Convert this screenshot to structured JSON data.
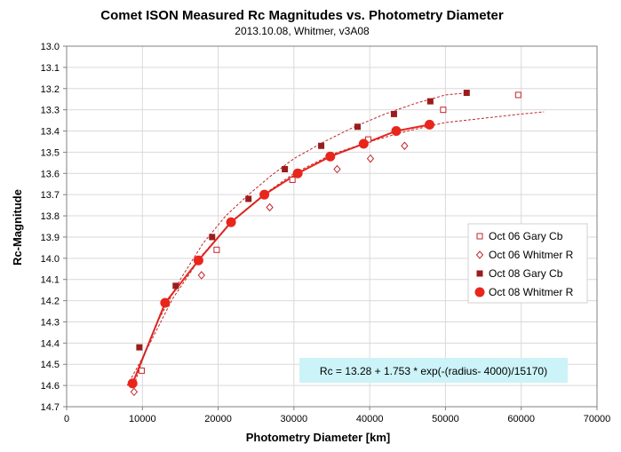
{
  "chart_data": {
    "type": "scatter",
    "title": "Comet ISON Measured Rc Magnitudes vs. Photometry Diameter",
    "subtitle": "2013.10.08,  Whitmer, v3A08",
    "xlabel": "Photometry Diameter  [km]",
    "ylabel": "Rc-Magnitude",
    "xlim": [
      0,
      70000
    ],
    "ylim": [
      14.7,
      13.0
    ],
    "y_reversed": true,
    "grid": true,
    "legend_position": "right",
    "x_ticks": [
      "0",
      "10000",
      "20000",
      "30000",
      "40000",
      "50000",
      "60000",
      "70000"
    ],
    "y_ticks": [
      "13.0",
      "13.1",
      "13.2",
      "13.3",
      "13.4",
      "13.5",
      "13.6",
      "13.7",
      "13.8",
      "13.9",
      "14.0",
      "14.1",
      "14.2",
      "14.3",
      "14.4",
      "14.5",
      "14.6",
      "14.7"
    ],
    "annotation": "Rc = 13.28 + 1.753 * exp(-(radius- 4000)/15170)",
    "series": [
      {
        "name": "Oct 06 Gary Cb",
        "marker": "open-square",
        "color": "#c0272d",
        "x": [
          9900,
          19800,
          29800,
          39800,
          49700,
          59600
        ],
        "y": [
          14.53,
          13.96,
          13.63,
          13.44,
          13.3,
          13.23
        ]
      },
      {
        "name": "Oct 06 Whitmer R",
        "marker": "open-diamond",
        "color": "#c0272d",
        "x": [
          8900,
          17800,
          26800,
          35700,
          40100,
          44600
        ],
        "y": [
          14.63,
          14.08,
          13.76,
          13.58,
          13.53,
          13.47
        ]
      },
      {
        "name": "Oct 08 Gary Cb",
        "marker": "filled-square",
        "color": "#9b1c1c",
        "x": [
          9600,
          14400,
          19200,
          24000,
          28800,
          33600,
          38400,
          43200,
          48000,
          52800
        ],
        "y": [
          14.42,
          14.13,
          13.9,
          13.72,
          13.58,
          13.47,
          13.38,
          13.32,
          13.26,
          13.22
        ]
      },
      {
        "name": "Oct 08 Whitmer R",
        "marker": "filled-circle",
        "color": "#e8261c",
        "x": [
          8700,
          13000,
          17400,
          21700,
          26100,
          30500,
          34800,
          39200,
          43500,
          47900
        ],
        "y": [
          14.59,
          14.21,
          14.01,
          13.83,
          13.7,
          13.6,
          13.52,
          13.46,
          13.4,
          13.37
        ]
      }
    ],
    "curves": [
      {
        "style": "solid",
        "color": "#e8261c",
        "x": [
          8700,
          13000,
          17400,
          21700,
          26100,
          30500,
          34800,
          39200,
          43500,
          47900
        ],
        "y": [
          14.59,
          14.21,
          14.01,
          13.83,
          13.7,
          13.6,
          13.52,
          13.46,
          13.4,
          13.37
        ]
      },
      {
        "style": "dashed",
        "color": "#c0272d",
        "x": [
          8900,
          10000,
          12000,
          15000,
          18000,
          21000,
          24000,
          27000,
          30000,
          34000,
          38000,
          42000,
          46000,
          50000,
          53000
        ],
        "y": [
          14.6,
          14.48,
          14.3,
          14.1,
          13.93,
          13.8,
          13.7,
          13.61,
          13.53,
          13.45,
          13.38,
          13.32,
          13.27,
          13.23,
          13.22
        ]
      },
      {
        "style": "dashed",
        "color": "#c0272d",
        "x": [
          8000,
          10000,
          14000,
          18000,
          22000,
          26000,
          30000,
          35000,
          40000,
          45000,
          50000,
          55000,
          60000,
          63000
        ],
        "y": [
          14.6,
          14.47,
          14.19,
          13.98,
          13.82,
          13.7,
          13.6,
          13.51,
          13.45,
          13.4,
          13.36,
          13.34,
          13.32,
          13.31
        ]
      }
    ]
  }
}
